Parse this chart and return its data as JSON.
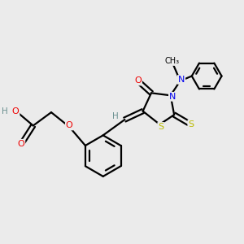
{
  "bg_color": "#ebebeb",
  "atom_colors": {
    "C": "#000000",
    "H": "#6a9090",
    "N": "#0000ee",
    "O": "#ee0000",
    "S": "#bbbb00"
  },
  "bond_color": "#000000",
  "bond_width": 1.6,
  "figsize": [
    3.0,
    3.0
  ],
  "dpi": 100
}
